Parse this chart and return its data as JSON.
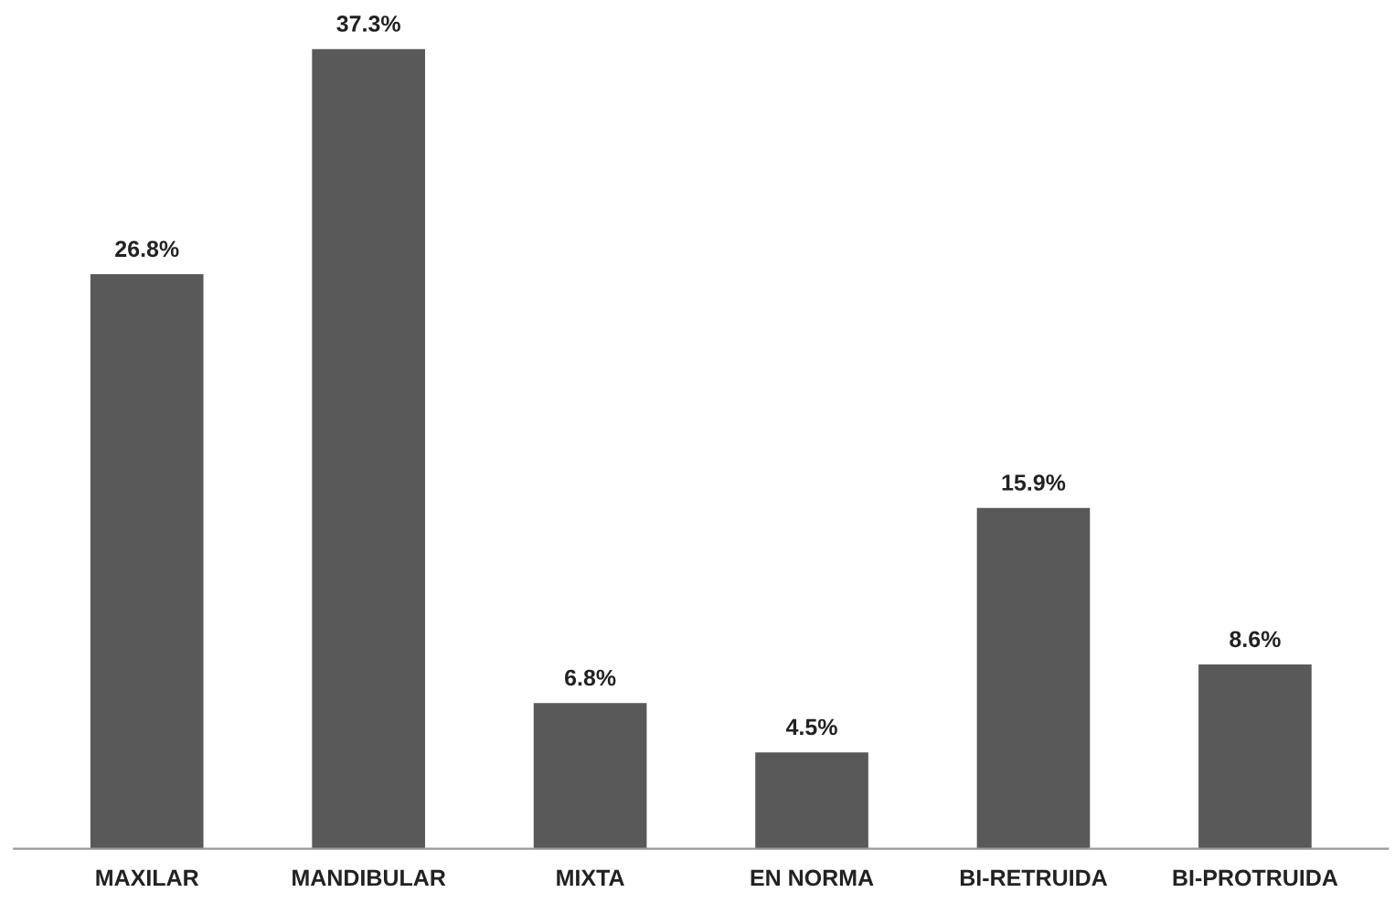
{
  "chart_data": {
    "type": "bar",
    "categories": [
      "MAXILAR",
      "MANDIBULAR",
      "MIXTA",
      "EN NORMA",
      "BI-RETRUIDA",
      "BI-PROTRUIDA"
    ],
    "values": [
      26.8,
      37.3,
      6.8,
      4.5,
      15.9,
      8.6
    ],
    "value_labels": [
      "26.8%",
      "37.3%",
      "6.8%",
      "4.5%",
      "15.9%",
      "8.6%"
    ],
    "color": "#595959",
    "grid": false,
    "legend": false
  }
}
